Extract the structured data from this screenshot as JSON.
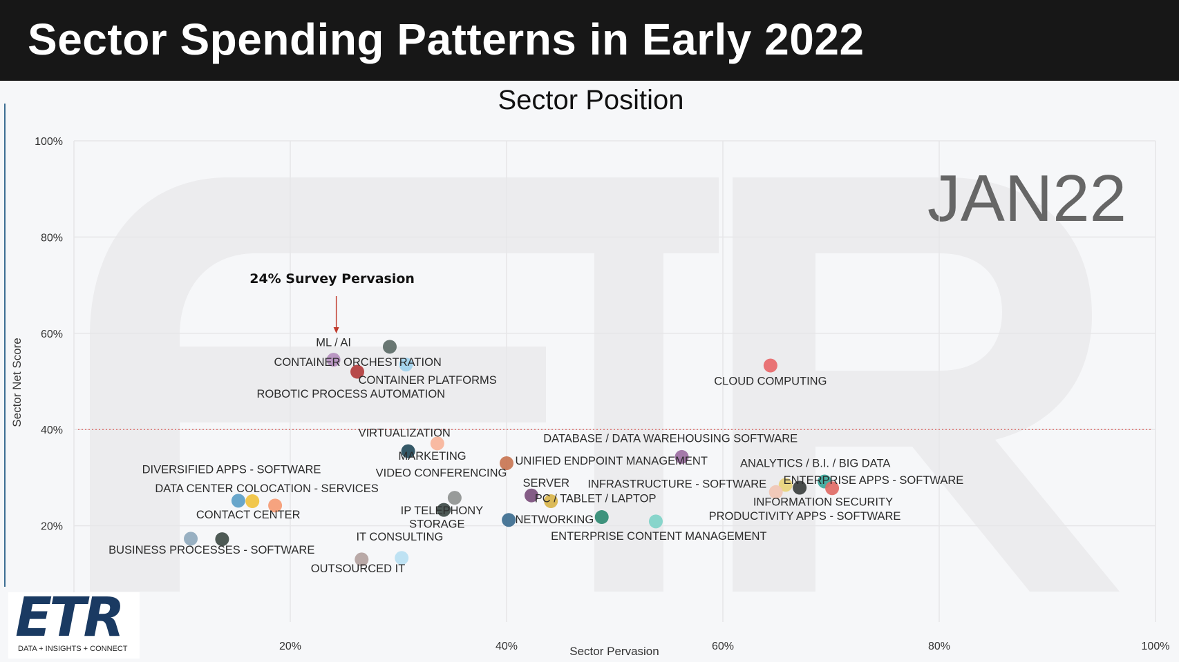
{
  "header": {
    "title": "Sector Spending Patterns in Early 2022"
  },
  "logo": {
    "mark": "ETR",
    "tagline": "DATA + INSIGHTS + CONNECT"
  },
  "colors": {
    "header_bg": "#171717",
    "reference_line": "#d9534f",
    "watermark": "#ececee"
  },
  "chart_data": {
    "type": "scatter",
    "title": "Sector Position",
    "xlabel": "Sector Pervasion",
    "ylabel": "Sector Net Score",
    "xlim": [
      0,
      100
    ],
    "ylim": [
      0,
      100
    ],
    "x_ticks": [
      20,
      40,
      60,
      80,
      100
    ],
    "y_ticks": [
      20,
      40,
      60,
      80,
      100
    ],
    "x_tick_labels": [
      "20%",
      "40%",
      "60%",
      "80%",
      "100%"
    ],
    "y_tick_labels": [
      "20%",
      "40%",
      "60%",
      "80%",
      "100%"
    ],
    "grid": true,
    "reference_line_y": 40,
    "watermark_label": "JAN22",
    "annotation": {
      "text": "24% Survey Pervasion",
      "x": 24,
      "y": 60
    },
    "points": [
      {
        "label": "ML / AI",
        "x": 24.0,
        "y": 54.5,
        "color": "#b58fbf"
      },
      {
        "label": "CONTAINER ORCHESTRATION",
        "x": 30.7,
        "y": 53.5,
        "color": "#9fd2ee"
      },
      {
        "label": "CONTAINER PLATFORMS",
        "x": 26.2,
        "y": 52.0,
        "color": "#b23c3c"
      },
      {
        "label": "ROBOTIC PROCESS AUTOMATION",
        "x": 29.2,
        "y": 57.2,
        "color": "#5c6b67"
      },
      {
        "label": "CLOUD COMPUTING",
        "x": 64.4,
        "y": 53.3,
        "color": "#e8686a"
      },
      {
        "label": "VIRTUALIZATION",
        "x": 33.6,
        "y": 37.1,
        "color": "#f7b49a"
      },
      {
        "label": "MARKETING",
        "x": 30.9,
        "y": 35.5,
        "color": "#234a5a"
      },
      {
        "label": "DATABASE / DATA WAREHOUSING SOFTWARE",
        "x": 56.2,
        "y": 34.3,
        "color": "#9c6ea3"
      },
      {
        "label": "UNIFIED ENDPOINT MANAGEMENT",
        "x": 40.0,
        "y": 33.0,
        "color": "#c87552"
      },
      {
        "label": "VIDEO CONFERENCING",
        "x": 35.2,
        "y": 25.8,
        "color": "#8f9391"
      },
      {
        "label": "DIVERSIFIED APPS - SOFTWARE",
        "x": 16.5,
        "y": 25.1,
        "color": "#f0c23e"
      },
      {
        "label": "DATA CENTER COLOCATION - SERVICES",
        "x": 15.2,
        "y": 25.2,
        "color": "#5b9ec7"
      },
      {
        "label": "CONTACT CENTER",
        "x": 18.6,
        "y": 24.2,
        "color": "#f59b74"
      },
      {
        "label": "SERVER",
        "x": 42.3,
        "y": 26.3,
        "color": "#7a4e7c"
      },
      {
        "label": "PC / TABLET / LAPTOP",
        "x": 44.1,
        "y": 25.1,
        "color": "#d8b44a"
      },
      {
        "label": "INFRASTRUCTURE - SOFTWARE",
        "x": 65.8,
        "y": 28.5,
        "color": "#e8d37a"
      },
      {
        "label": "ANALYTICS / B.I. / BIG DATA",
        "x": 69.4,
        "y": 29.2,
        "color": "#3aa69a"
      },
      {
        "label": "ENTERPRISE APPS - SOFTWARE",
        "x": 67.1,
        "y": 27.9,
        "color": "#3b3f3e"
      },
      {
        "label": "INFORMATION SECURITY",
        "x": 70.1,
        "y": 27.8,
        "color": "#e06b66"
      },
      {
        "label": "IP TELEPHONY",
        "x": 34.2,
        "y": 23.3,
        "color": "#3d4a47"
      },
      {
        "label": "STORAGE",
        "x": 40.2,
        "y": 21.2,
        "color": "#3c6d8f"
      },
      {
        "label": "NETWORKING",
        "x": 48.8,
        "y": 21.8,
        "color": "#2f8a72"
      },
      {
        "label": "PRODUCTIVITY APPS - SOFTWARE",
        "x": 53.8,
        "y": 20.9,
        "color": "#7fd3c8"
      },
      {
        "label": "ENTERPRISE CONTENT MANAGEMENT",
        "x": 64.9,
        "y": 27.0,
        "color": "#f1c5b4"
      },
      {
        "label": "BUSINESS PROCESSES - SOFTWARE",
        "x": 10.8,
        "y": 17.3,
        "color": "#8fa9bd"
      },
      {
        "label": "IT CONSULTING",
        "x": 13.7,
        "y": 17.2,
        "color": "#3f4c47"
      },
      {
        "label": "OUTSOURCED IT",
        "x": 26.6,
        "y": 13.0,
        "color": "#b3a2a0"
      },
      {
        "label": "OUTSOURCED IT 2",
        "x": 30.3,
        "y": 13.3,
        "color": "#b8e0f2"
      }
    ],
    "labels": [
      {
        "text": "ML / AI",
        "x": 24.0,
        "y": 57.3,
        "anchor": "middle"
      },
      {
        "text": "CONTAINER ORCHESTRATION",
        "x": 18.5,
        "y": 53.2,
        "anchor": "start"
      },
      {
        "text": "CONTAINER PLATFORMS",
        "x": 26.3,
        "y": 49.5,
        "anchor": "start"
      },
      {
        "text": "ROBOTIC PROCESS AUTOMATION",
        "x": 16.9,
        "y": 46.6,
        "anchor": "start"
      },
      {
        "text": "CLOUD COMPUTING",
        "x": 64.4,
        "y": 49.3,
        "anchor": "middle"
      },
      {
        "text": "VIRTUALIZATION",
        "x": 26.3,
        "y": 38.5,
        "anchor": "start"
      },
      {
        "text": "MARKETING",
        "x": 30.0,
        "y": 33.7,
        "anchor": "start"
      },
      {
        "text": "DATABASE / DATA WAREHOUSING SOFTWARE",
        "x": 43.4,
        "y": 37.4,
        "anchor": "start"
      },
      {
        "text": "UNIFIED ENDPOINT MANAGEMENT",
        "x": 40.8,
        "y": 32.7,
        "anchor": "start"
      },
      {
        "text": "VIDEO CONFERENCING",
        "x": 27.9,
        "y": 30.2,
        "anchor": "start"
      },
      {
        "text": "DIVERSIFIED APPS - SOFTWARE",
        "x": 6.3,
        "y": 30.9,
        "anchor": "start"
      },
      {
        "text": "DATA CENTER COLOCATION - SERVICES",
        "x": 7.5,
        "y": 27.0,
        "anchor": "start"
      },
      {
        "text": "CONTACT CENTER",
        "x": 11.3,
        "y": 21.5,
        "anchor": "start"
      },
      {
        "text": "SERVER",
        "x": 41.5,
        "y": 28.1,
        "anchor": "start"
      },
      {
        "text": "PC / TABLET / LAPTOP",
        "x": 42.6,
        "y": 24.9,
        "anchor": "start"
      },
      {
        "text": "INFRASTRUCTURE - SOFTWARE",
        "x": 47.5,
        "y": 27.9,
        "anchor": "start"
      },
      {
        "text": "ANALYTICS / B.I. / BIG DATA",
        "x": 61.6,
        "y": 32.2,
        "anchor": "start"
      },
      {
        "text": "ENTERPRISE APPS - SOFTWARE",
        "x": 65.6,
        "y": 28.7,
        "anchor": "start"
      },
      {
        "text": "INFORMATION SECURITY",
        "x": 62.8,
        "y": 24.2,
        "anchor": "start"
      },
      {
        "text": "IP TELEPHONY",
        "x": 30.2,
        "y": 22.4,
        "anchor": "start"
      },
      {
        "text": "STORAGE",
        "x": 31.0,
        "y": 19.6,
        "anchor": "start"
      },
      {
        "text": "NETWORKING",
        "x": 40.8,
        "y": 20.5,
        "anchor": "start"
      },
      {
        "text": "PRODUCTIVITY APPS - SOFTWARE",
        "x": 58.7,
        "y": 21.2,
        "anchor": "start"
      },
      {
        "text": "ENTERPRISE CONTENT MANAGEMENT",
        "x": 44.1,
        "y": 17.1,
        "anchor": "start"
      },
      {
        "text": "BUSINESS PROCESSES - SOFTWARE",
        "x": 3.2,
        "y": 14.2,
        "anchor": "start"
      },
      {
        "text": "IT CONSULTING",
        "x": 26.1,
        "y": 16.9,
        "anchor": "start"
      },
      {
        "text": "OUTSOURCED IT",
        "x": 21.9,
        "y": 10.3,
        "anchor": "start"
      }
    ]
  }
}
